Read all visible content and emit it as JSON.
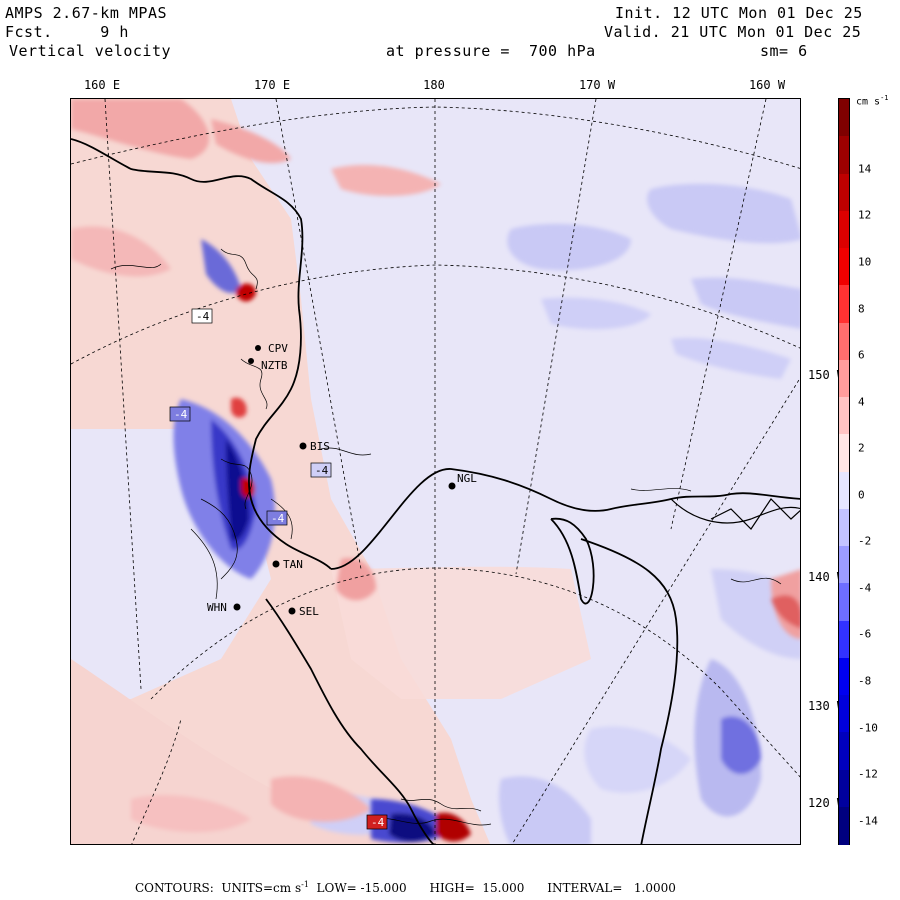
{
  "header": {
    "model": "AMPS 2.67-km MPAS",
    "fcst": "Fcst.     9 h",
    "field": "Vertical velocity",
    "init": "Init. 12 UTC Mon 01 Dec 25",
    "valid": "Valid. 21 UTC Mon 01 Dec 25",
    "pressure": "at pressure =  700 hPa",
    "smooth": "sm= 6"
  },
  "lon_labels": [
    "160 E",
    "170 E",
    "180",
    "170 W",
    "160 W"
  ],
  "lat_labels": [
    "150 W",
    "140 W",
    "130 W",
    "120 W"
  ],
  "stations": [
    {
      "code": "CPV"
    },
    {
      "code": "NZTB"
    },
    {
      "code": "BIS"
    },
    {
      "code": "NGL"
    },
    {
      "code": "TAN"
    },
    {
      "code": "SEL"
    },
    {
      "code": "WHN"
    }
  ],
  "box_labels": [
    "-4",
    "-4",
    "-4",
    "-4",
    "-4"
  ],
  "colorbar": {
    "unit": "cm s",
    "unit_sup": "-1",
    "labels": [
      "14",
      "12",
      "10",
      "8",
      "6",
      "4",
      "2",
      "0",
      "-2",
      "-4",
      "-6",
      "-8",
      "-10",
      "-12",
      "-14"
    ],
    "colors": [
      "#7f0000",
      "#9e0000",
      "#be0000",
      "#dc0000",
      "#f00000",
      "#ff3232",
      "#ff6e6e",
      "#ff9c9c",
      "#ffc4c4",
      "#ffe6e6",
      "#e6e6ff",
      "#c4c4ff",
      "#9c9cff",
      "#6e6eff",
      "#3232ff",
      "#0000f0",
      "#0000dc",
      "#0000be",
      "#00009e",
      "#00007f"
    ]
  },
  "footer": {
    "text": "CONTOURS:  UNITS=cm s",
    "sup": "-1",
    "rest": "  LOW= -15.000      HIGH=  15.000      INTERVAL=   1.0000"
  }
}
